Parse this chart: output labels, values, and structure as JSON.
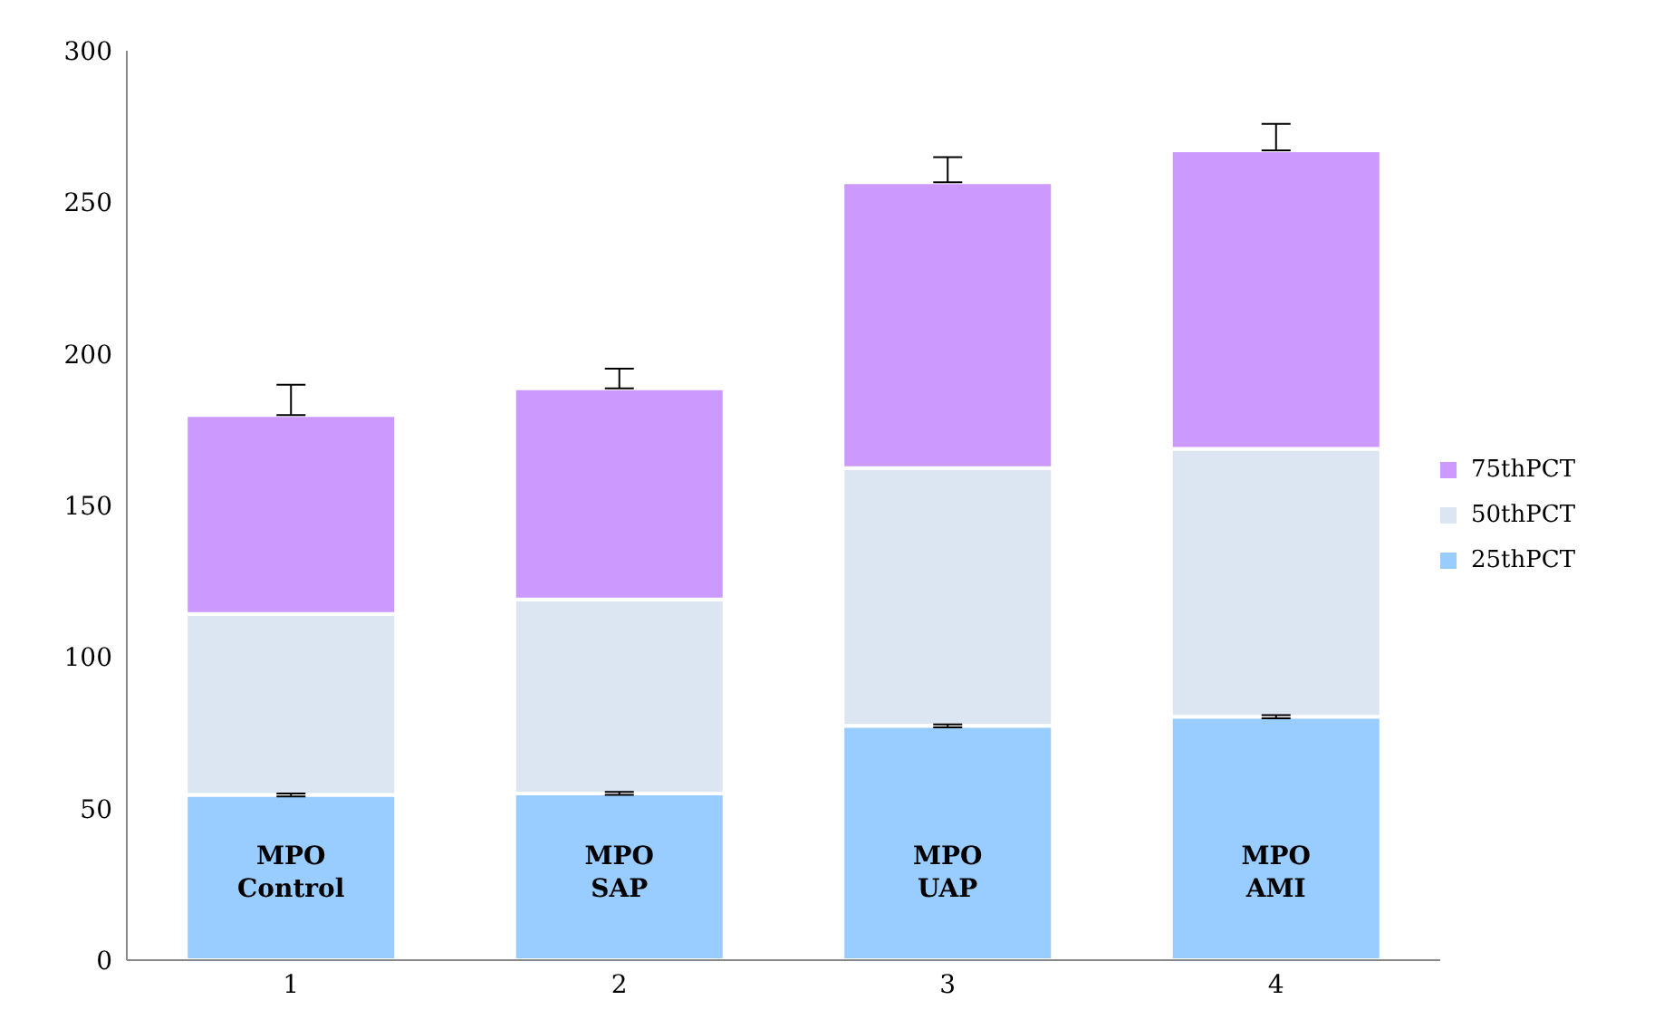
{
  "chart_data": {
    "type": "bar",
    "stacked": true,
    "categories": [
      "1",
      "2",
      "3",
      "4"
    ],
    "series": [
      {
        "name": "25thPCT",
        "color": "#99ccff",
        "values": [
          54.5,
          55,
          77.3,
          80.3
        ],
        "errors": [
          0.5,
          0.5,
          0.5,
          0.5
        ]
      },
      {
        "name": "50thPCT",
        "color": "#dce6f2",
        "values": [
          59.7,
          64,
          85,
          88.4
        ]
      },
      {
        "name": "75thPCT",
        "color": "#cc99ff",
        "values": [
          65.6,
          69.6,
          94.3,
          98.4
        ],
        "errors": [
          [
            179.8,
            189.8
          ],
          [
            188.6,
            195.1
          ],
          [
            256.6,
            264.9
          ],
          [
            267.1,
            275.9
          ]
        ]
      }
    ],
    "ylim": [
      0,
      300
    ],
    "yticks": [
      0,
      50,
      100,
      150,
      200,
      250,
      300
    ],
    "legend": "right",
    "grid": false,
    "annotations": [
      "MPO\nControl",
      "MPO\nSAP",
      "MPO\nUAP",
      "MPO\nAMI"
    ]
  }
}
